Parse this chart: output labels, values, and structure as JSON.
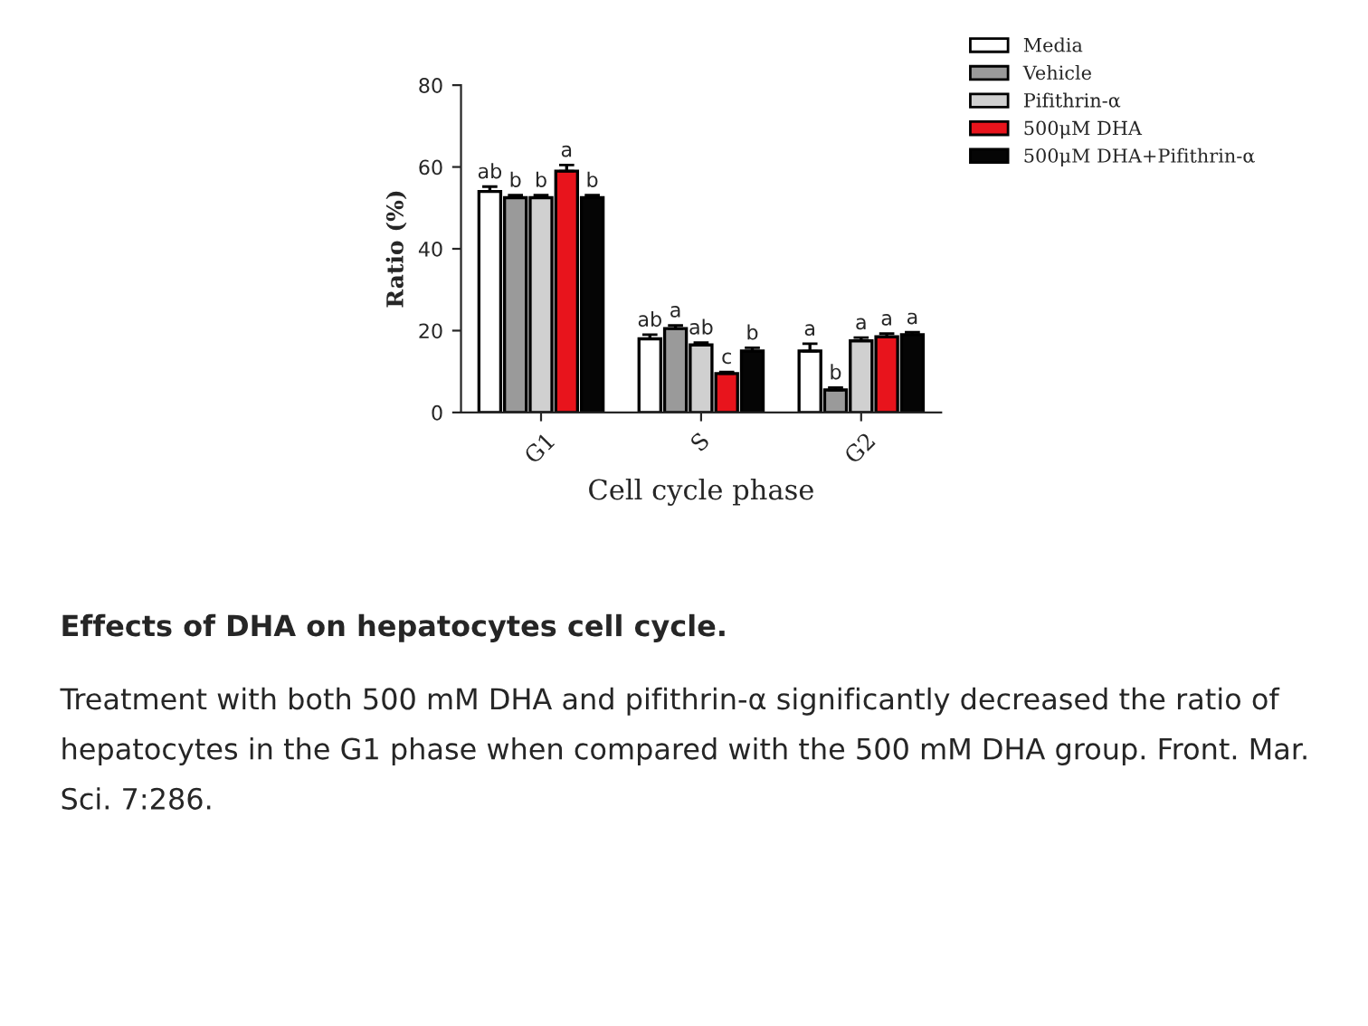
{
  "chart_data": {
    "type": "bar",
    "title": "Effects of DHA on hepatocytes cell cycle.",
    "xlabel": "Cell cycle phase",
    "ylabel": "Ratio (%)",
    "categories": [
      "G1",
      "S",
      "G2"
    ],
    "series": [
      {
        "name": "Media",
        "color": "#ffffff",
        "values": [
          54,
          18,
          15
        ],
        "errors": [
          1.2,
          1,
          1.8
        ],
        "value_labels": [
          "ab",
          "ab",
          "a"
        ]
      },
      {
        "name": "Vehicle",
        "color": "#9a9a9a",
        "values": [
          52.5,
          20.5,
          5.5
        ],
        "errors": [
          0.6,
          0.8,
          0.6
        ],
        "value_labels": [
          "b",
          "a",
          "b"
        ]
      },
      {
        "name": "Pifithrin-α",
        "color": "#d0d0d0",
        "values": [
          52.5,
          16.5,
          17.5
        ],
        "errors": [
          0.6,
          0.6,
          0.8
        ],
        "value_labels": [
          "b",
          "ab",
          "a"
        ]
      },
      {
        "name": "500μM DHA",
        "color": "#e8141c",
        "values": [
          59,
          9.5,
          18.5
        ],
        "errors": [
          1.5,
          0.4,
          0.8
        ],
        "value_labels": [
          "a",
          "c",
          "a"
        ]
      },
      {
        "name": "500μM DHA+Pifithrin-α",
        "color": "#050505",
        "values": [
          52.5,
          15,
          19
        ],
        "errors": [
          0.6,
          0.8,
          0.6
        ],
        "value_labels": [
          "b",
          "b",
          "a"
        ]
      }
    ],
    "ylim": [
      0,
      80
    ],
    "yticks": [
      0,
      20,
      40,
      60,
      80
    ],
    "grid": false,
    "legend": "top right",
    "annotations": [
      "Treatment with both 500 mM DHA and pifithrin-α significantly decreased the ratio of hepatocytes in the G1 phase when compared with the 500 mM DHA group. Front. Mar. Sci. 7:286."
    ]
  }
}
